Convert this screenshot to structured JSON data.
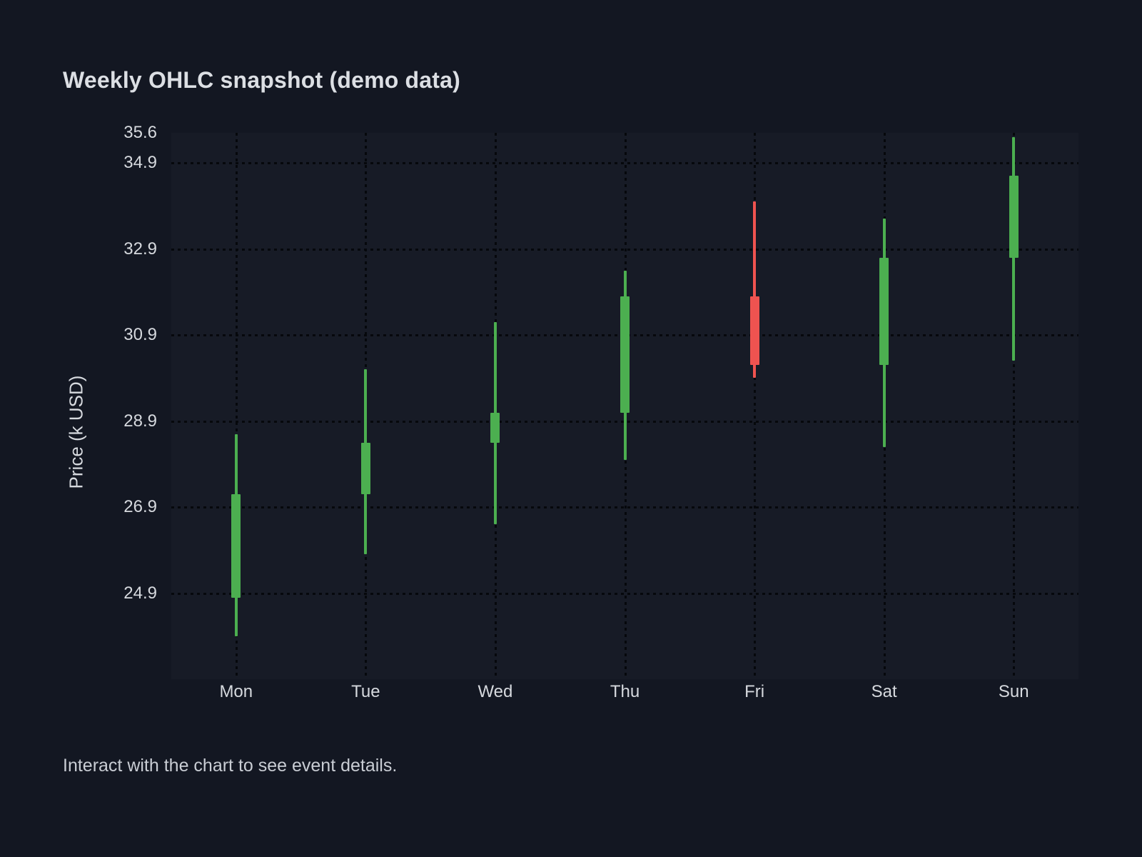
{
  "page": {
    "title": "Weekly OHLC snapshot (demo data)",
    "footer_hint": "Interact with the chart to see event details."
  },
  "colors": {
    "background": "#131722",
    "plot_background": "#171b26",
    "grid_dots": "#06080c",
    "text": "#d6d9de",
    "up": "#4caf50",
    "down": "#ef5350"
  },
  "chart_data": {
    "type": "candlestick",
    "title": "Weekly OHLC snapshot (demo data)",
    "xlabel": "",
    "ylabel": "Price (k USD)",
    "categories": [
      "Mon",
      "Tue",
      "Wed",
      "Thu",
      "Fri",
      "Sat",
      "Sun"
    ],
    "series": [
      {
        "name": "OHLC",
        "points": [
          {
            "day": "Mon",
            "open": 24.8,
            "high": 28.6,
            "low": 23.9,
            "close": 27.2,
            "direction": "up"
          },
          {
            "day": "Tue",
            "open": 27.2,
            "high": 30.1,
            "low": 25.8,
            "close": 28.4,
            "direction": "up"
          },
          {
            "day": "Wed",
            "open": 28.4,
            "high": 31.2,
            "low": 26.5,
            "close": 29.1,
            "direction": "up"
          },
          {
            "day": "Thu",
            "open": 29.1,
            "high": 32.4,
            "low": 28.0,
            "close": 31.8,
            "direction": "up"
          },
          {
            "day": "Fri",
            "open": 31.8,
            "high": 34.0,
            "low": 29.9,
            "close": 30.2,
            "direction": "down"
          },
          {
            "day": "Sat",
            "open": 30.2,
            "high": 33.6,
            "low": 28.3,
            "close": 32.7,
            "direction": "up"
          },
          {
            "day": "Sun",
            "open": 32.7,
            "high": 35.5,
            "low": 30.3,
            "close": 34.6,
            "direction": "up"
          }
        ]
      }
    ],
    "ylim": [
      22.9,
      35.6
    ],
    "yticks": [
      {
        "value": 35.6,
        "label": "35.6",
        "gridline": false
      },
      {
        "value": 34.9,
        "label": "34.9",
        "gridline": true
      },
      {
        "value": 32.9,
        "label": "32.9",
        "gridline": true
      },
      {
        "value": 30.9,
        "label": "30.9",
        "gridline": true
      },
      {
        "value": 28.9,
        "label": "28.9",
        "gridline": true
      },
      {
        "value": 26.9,
        "label": "26.9",
        "gridline": true
      },
      {
        "value": 24.9,
        "label": "24.9",
        "gridline": true
      }
    ],
    "grid": "dotted",
    "legend": "none"
  }
}
